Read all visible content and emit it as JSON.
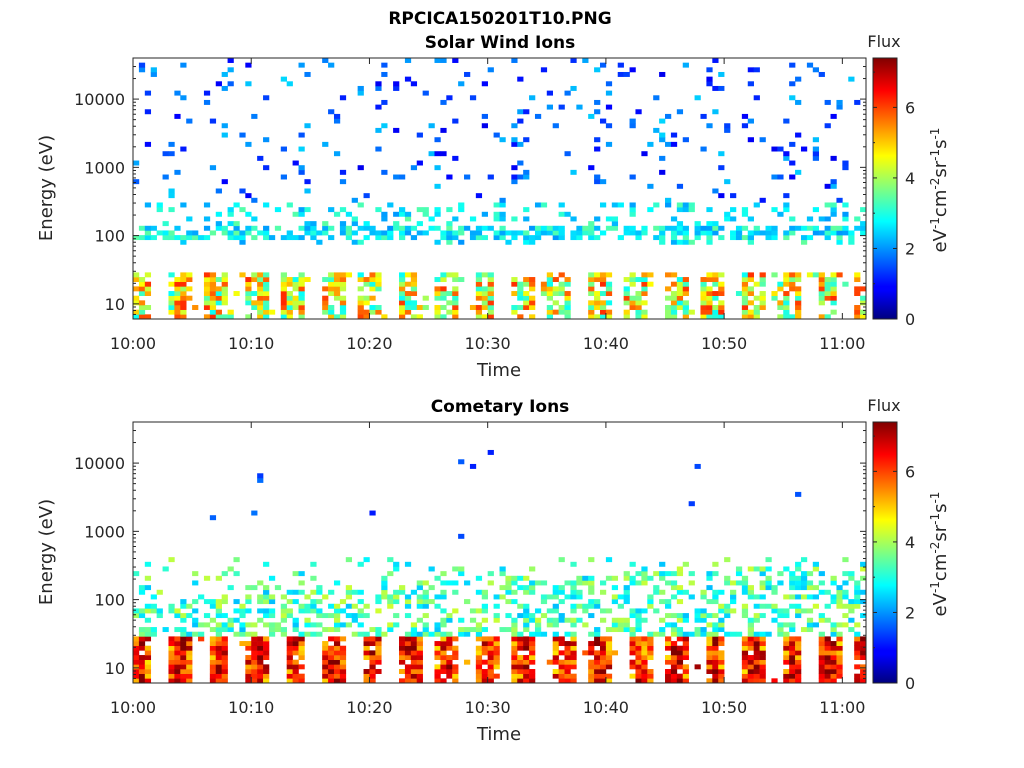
{
  "figure": {
    "file_title": "RPCICA150201T10.PNG"
  },
  "colors": {
    "colormap": "jet",
    "background": "#ffffff",
    "axis": "#262626"
  },
  "chart_data": [
    {
      "type": "heatmap",
      "title": "Solar Wind Ions",
      "xlabel": "Time",
      "ylabel": "Energy (eV)",
      "y_scale": "log",
      "ylim": [
        6,
        40000
      ],
      "x_tick_labels": [
        "10:00",
        "10:10",
        "10:20",
        "10:30",
        "10:40",
        "10:50",
        "11:00"
      ],
      "y_tick_labels": [
        "10",
        "100",
        "1000",
        "10000"
      ],
      "xlim": [
        "10:00",
        "11:02"
      ],
      "grid": false,
      "colorbar": {
        "title": "Flux",
        "label_base": [
          "eV",
          "cm",
          "sr",
          "s"
        ],
        "label_exp": [
          "-1",
          "-2",
          "-1",
          "-1"
        ],
        "range": [
          0,
          7.4
        ],
        "tick_labels": [
          "0",
          "2",
          "4",
          "6"
        ]
      },
      "sweep_centers_min": [
        0.5,
        3.6,
        6.8,
        10.1,
        13.3,
        16.6,
        19.8,
        23.0,
        26.2,
        29.5,
        32.7,
        35.9,
        39.1,
        42.4,
        45.6,
        48.9,
        52.1,
        55.3,
        58.5,
        61.5
      ],
      "bands": [
        {
          "energy_range_ev": [
            6,
            28
          ],
          "flux_range": [
            2.8,
            6.2
          ]
        },
        {
          "energy_range_ev": [
            70,
            300
          ],
          "flux_range": [
            2.0,
            3.5
          ]
        },
        {
          "energy_range_ev": [
            300,
            40000
          ],
          "flux_range": [
            0.8,
            2.5
          ]
        }
      ]
    },
    {
      "type": "heatmap",
      "title": "Cometary Ions",
      "xlabel": "Time",
      "ylabel": "Energy (eV)",
      "y_scale": "log",
      "ylim": [
        6,
        40000
      ],
      "x_tick_labels": [
        "10:00",
        "10:10",
        "10:20",
        "10:30",
        "10:40",
        "10:50",
        "11:00"
      ],
      "y_tick_labels": [
        "10",
        "100",
        "1000",
        "10000"
      ],
      "xlim": [
        "10:00",
        "11:02"
      ],
      "grid": false,
      "colorbar": {
        "title": "Flux",
        "label_base": [
          "eV",
          "cm",
          "sr",
          "s"
        ],
        "label_exp": [
          "-1",
          "-2",
          "-1",
          "-1"
        ],
        "range": [
          0,
          7.4
        ],
        "tick_labels": [
          "0",
          "2",
          "4",
          "6"
        ]
      },
      "sweep_centers_min": [
        0.5,
        3.8,
        7.0,
        10.2,
        13.5,
        16.7,
        20.0,
        23.2,
        26.4,
        29.6,
        32.9,
        36.1,
        39.3,
        42.6,
        45.8,
        49.0,
        52.3,
        55.5,
        58.7,
        61.5
      ],
      "bands": [
        {
          "energy_range_ev": [
            6,
            28
          ],
          "flux_range": [
            4.8,
            7.2
          ]
        },
        {
          "energy_range_ev": [
            30,
            400
          ],
          "flux_range": [
            2.3,
            4.3
          ]
        }
      ]
    }
  ]
}
